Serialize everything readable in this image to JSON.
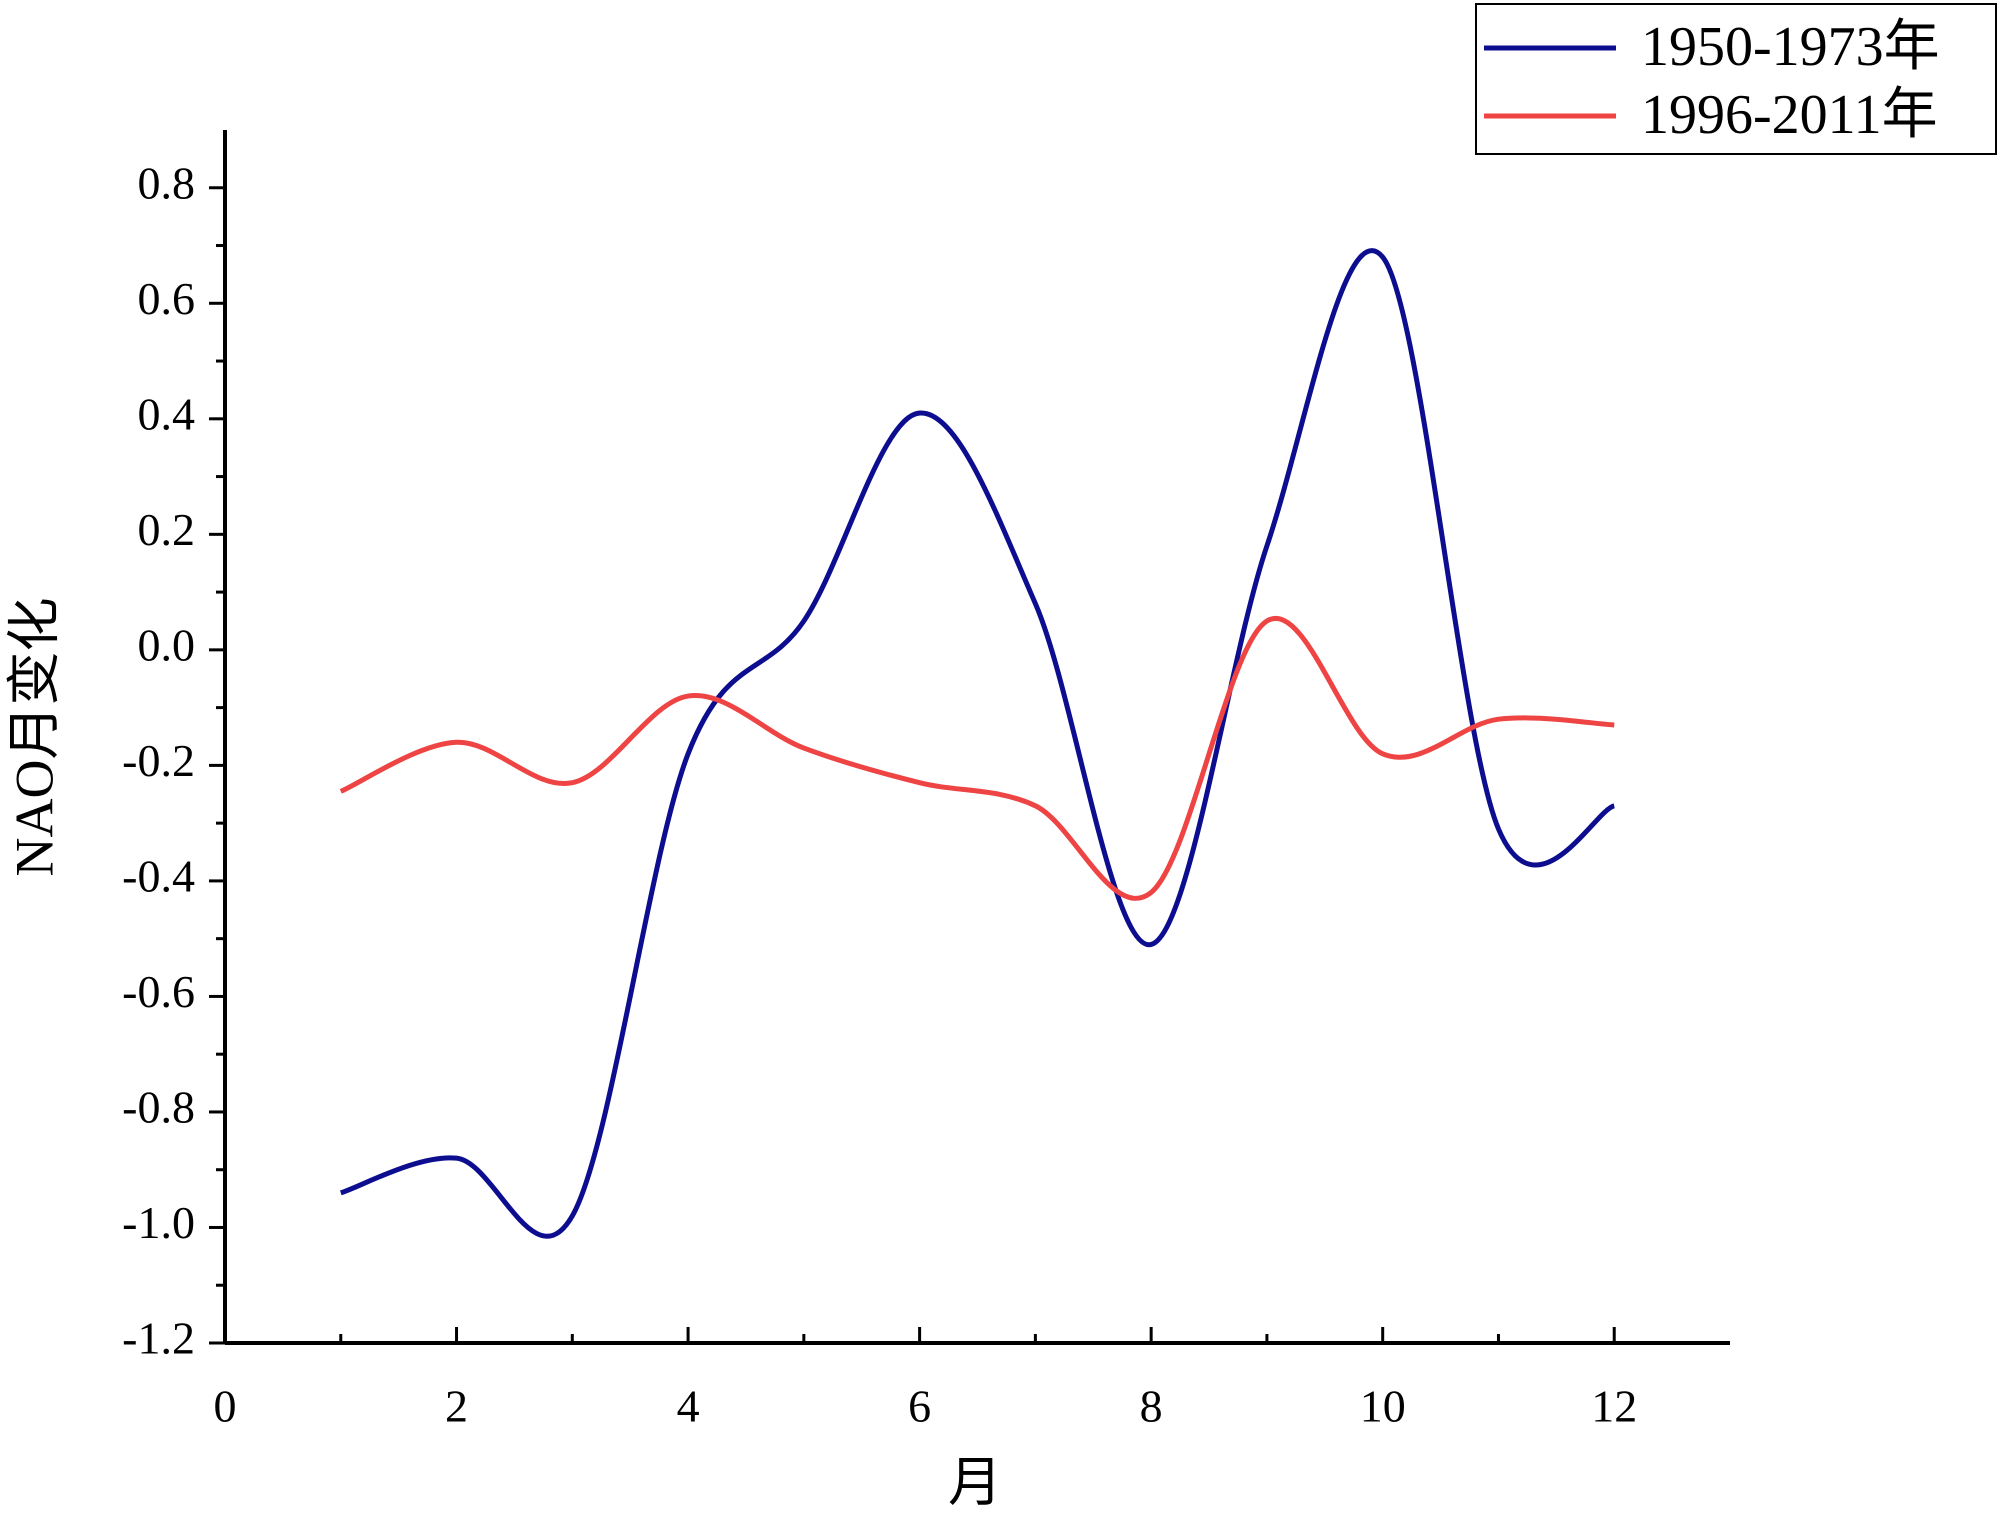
{
  "chart_data": {
    "type": "line",
    "x_label": "月",
    "y_label": "NAO月变化",
    "x": [
      1,
      2,
      3,
      4,
      5,
      6,
      7,
      8,
      9,
      10,
      11,
      12
    ],
    "series": [
      {
        "name": "1950-1973年",
        "color": "#0d0d8f",
        "values": [
          -0.94,
          -0.88,
          -0.98,
          -0.18,
          0.05,
          0.41,
          0.08,
          -0.51,
          0.18,
          0.68,
          -0.31,
          -0.27
        ]
      },
      {
        "name": "1996-2011年",
        "color": "#ee4444",
        "values": [
          -0.245,
          -0.16,
          -0.23,
          -0.08,
          -0.17,
          -0.23,
          -0.27,
          -0.42,
          0.05,
          -0.18,
          -0.12,
          -0.13
        ]
      }
    ],
    "xlim": [
      0,
      13
    ],
    "xticks": [
      0,
      2,
      4,
      6,
      8,
      10,
      12
    ],
    "ylim": [
      -1.2,
      0.9
    ],
    "yticks": [
      -1.2,
      {
        "value": -1.0,
        "label": "-1.0"
      },
      -0.8,
      -0.6,
      -0.4,
      -0.2,
      {
        "value": 0.0,
        "label": "0.0"
      },
      0.2,
      0.4,
      0.6,
      0.8
    ],
    "legend": "top-right"
  }
}
